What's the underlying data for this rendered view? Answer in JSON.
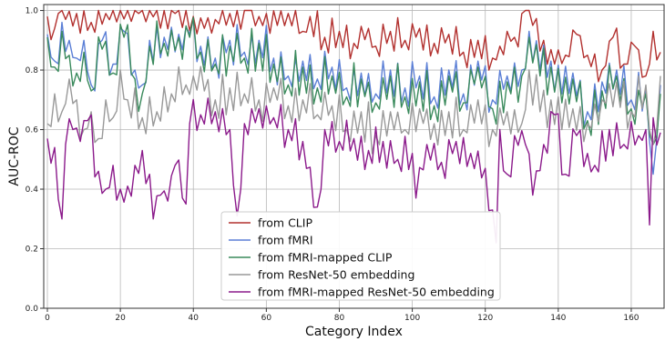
{
  "chart_data": {
    "type": "line",
    "title": "",
    "xlabel": "Category Index",
    "ylabel": "AUC-ROC",
    "xlim": [
      -1,
      169
    ],
    "ylim": [
      0.0,
      1.02
    ],
    "xticks": [
      0,
      20,
      40,
      60,
      80,
      100,
      120,
      140,
      160
    ],
    "yticks": [
      0.0,
      0.2,
      0.4,
      0.6,
      0.8,
      1.0
    ],
    "xtick_labels": [
      "0",
      "20",
      "40",
      "60",
      "80",
      "100",
      "120",
      "140",
      "160"
    ],
    "ytick_labels": [
      "0.0",
      "0.2",
      "0.4",
      "0.6",
      "0.8",
      "1.0"
    ],
    "grid": true,
    "legend_position": "lower-center",
    "series": [
      {
        "name": "from CLIP",
        "color": "#b2302e",
        "key": [
          [
            0,
            0.98
          ],
          [
            2,
            0.94
          ],
          [
            3,
            0.99
          ],
          [
            5,
            0.97
          ],
          [
            8,
            0.99
          ],
          [
            12,
            0.96
          ],
          [
            16,
            0.99
          ],
          [
            20,
            1.0
          ],
          [
            25,
            0.99
          ],
          [
            30,
            1.0
          ],
          [
            35,
            0.99
          ],
          [
            40,
            0.98
          ],
          [
            43,
            0.94
          ],
          [
            46,
            0.97
          ],
          [
            50,
            0.99
          ],
          [
            55,
            1.0
          ],
          [
            58,
            0.98
          ],
          [
            60,
            0.99
          ],
          [
            63,
            0.95
          ],
          [
            66,
            0.99
          ],
          [
            70,
            0.93
          ],
          [
            72,
            0.98
          ],
          [
            76,
            0.91
          ],
          [
            80,
            0.93
          ],
          [
            84,
            0.89
          ],
          [
            88,
            0.94
          ],
          [
            90,
            0.88
          ],
          [
            94,
            0.93
          ],
          [
            98,
            0.9
          ],
          [
            102,
            0.94
          ],
          [
            106,
            0.89
          ],
          [
            110,
            0.92
          ],
          [
            114,
            0.86
          ],
          [
            118,
            0.9
          ],
          [
            122,
            0.84
          ],
          [
            124,
            0.88
          ],
          [
            126,
            0.93
          ],
          [
            128,
            0.91
          ],
          [
            131,
            1.0
          ],
          [
            133,
            0.95
          ],
          [
            136,
            0.9
          ],
          [
            139,
            0.82
          ],
          [
            142,
            0.85
          ],
          [
            145,
            0.92
          ],
          [
            148,
            0.85
          ],
          [
            152,
            0.8
          ],
          [
            155,
            0.91
          ],
          [
            158,
            0.82
          ],
          [
            161,
            0.88
          ],
          [
            164,
            0.78
          ],
          [
            166,
            0.93
          ],
          [
            168,
            0.86
          ]
        ],
        "amp": 0.045
      },
      {
        "name": "from fMRI",
        "color": "#5b7fd6",
        "key": [
          [
            0,
            0.92
          ],
          [
            2,
            0.83
          ],
          [
            4,
            0.96
          ],
          [
            6,
            0.9
          ],
          [
            8,
            0.84
          ],
          [
            10,
            0.9
          ],
          [
            12,
            0.75
          ],
          [
            15,
            0.9
          ],
          [
            18,
            0.82
          ],
          [
            21,
            0.93
          ],
          [
            24,
            0.8
          ],
          [
            26,
            0.75
          ],
          [
            28,
            0.9
          ],
          [
            32,
            0.91
          ],
          [
            36,
            0.92
          ],
          [
            39,
            0.92
          ],
          [
            42,
            0.88
          ],
          [
            46,
            0.84
          ],
          [
            50,
            0.9
          ],
          [
            54,
            0.86
          ],
          [
            58,
            0.9
          ],
          [
            62,
            0.84
          ],
          [
            66,
            0.78
          ],
          [
            70,
            0.83
          ],
          [
            74,
            0.77
          ],
          [
            78,
            0.81
          ],
          [
            82,
            0.74
          ],
          [
            86,
            0.79
          ],
          [
            90,
            0.72
          ],
          [
            94,
            0.8
          ],
          [
            98,
            0.74
          ],
          [
            102,
            0.78
          ],
          [
            106,
            0.71
          ],
          [
            110,
            0.8
          ],
          [
            114,
            0.72
          ],
          [
            118,
            0.83
          ],
          [
            122,
            0.7
          ],
          [
            126,
            0.78
          ],
          [
            130,
            0.8
          ],
          [
            132,
            0.93
          ],
          [
            135,
            0.8
          ],
          [
            138,
            0.83
          ],
          [
            141,
            0.72
          ],
          [
            144,
            0.79
          ],
          [
            148,
            0.66
          ],
          [
            152,
            0.76
          ],
          [
            156,
            0.8
          ],
          [
            160,
            0.7
          ],
          [
            164,
            0.74
          ],
          [
            166,
            0.45
          ],
          [
            168,
            0.75
          ]
        ],
        "amp": 0.06
      },
      {
        "name": "from fMRI-mapped CLIP",
        "color": "#3a8a5c",
        "key": [
          [
            0,
            0.91
          ],
          [
            2,
            0.81
          ],
          [
            4,
            0.93
          ],
          [
            6,
            0.85
          ],
          [
            8,
            0.79
          ],
          [
            10,
            0.86
          ],
          [
            12,
            0.73
          ],
          [
            15,
            0.87
          ],
          [
            18,
            0.79
          ],
          [
            21,
            0.91
          ],
          [
            24,
            0.77
          ],
          [
            26,
            0.72
          ],
          [
            28,
            0.88
          ],
          [
            32,
            0.89
          ],
          [
            36,
            0.91
          ],
          [
            39,
            0.91
          ],
          [
            42,
            0.86
          ],
          [
            46,
            0.82
          ],
          [
            50,
            0.88
          ],
          [
            54,
            0.84
          ],
          [
            58,
            0.89
          ],
          [
            62,
            0.82
          ],
          [
            66,
            0.75
          ],
          [
            70,
            0.81
          ],
          [
            74,
            0.74
          ],
          [
            78,
            0.78
          ],
          [
            82,
            0.71
          ],
          [
            86,
            0.77
          ],
          [
            90,
            0.69
          ],
          [
            94,
            0.78
          ],
          [
            98,
            0.71
          ],
          [
            102,
            0.76
          ],
          [
            106,
            0.68
          ],
          [
            110,
            0.78
          ],
          [
            114,
            0.69
          ],
          [
            118,
            0.81
          ],
          [
            122,
            0.67
          ],
          [
            126,
            0.76
          ],
          [
            130,
            0.78
          ],
          [
            132,
            0.91
          ],
          [
            135,
            0.78
          ],
          [
            138,
            0.81
          ],
          [
            141,
            0.69
          ],
          [
            144,
            0.77
          ],
          [
            148,
            0.63
          ],
          [
            152,
            0.73
          ],
          [
            156,
            0.78
          ],
          [
            160,
            0.67
          ],
          [
            164,
            0.72
          ],
          [
            166,
            0.55
          ],
          [
            168,
            0.72
          ]
        ],
        "amp": 0.065
      },
      {
        "name": "from ResNet-50 embedding",
        "color": "#999999",
        "key": [
          [
            0,
            0.62
          ],
          [
            2,
            0.72
          ],
          [
            4,
            0.66
          ],
          [
            6,
            0.77
          ],
          [
            8,
            0.7
          ],
          [
            10,
            0.6
          ],
          [
            12,
            0.66
          ],
          [
            14,
            0.57
          ],
          [
            16,
            0.7
          ],
          [
            18,
            0.64
          ],
          [
            20,
            0.8
          ],
          [
            22,
            0.7
          ],
          [
            26,
            0.64
          ],
          [
            30,
            0.66
          ],
          [
            34,
            0.72
          ],
          [
            38,
            0.75
          ],
          [
            40,
            0.78
          ],
          [
            43,
            0.73
          ],
          [
            46,
            0.7
          ],
          [
            50,
            0.74
          ],
          [
            54,
            0.72
          ],
          [
            58,
            0.7
          ],
          [
            62,
            0.74
          ],
          [
            66,
            0.68
          ],
          [
            70,
            0.7
          ],
          [
            74,
            0.65
          ],
          [
            78,
            0.68
          ],
          [
            82,
            0.6
          ],
          [
            86,
            0.66
          ],
          [
            90,
            0.58
          ],
          [
            94,
            0.66
          ],
          [
            98,
            0.6
          ],
          [
            102,
            0.67
          ],
          [
            106,
            0.62
          ],
          [
            110,
            0.66
          ],
          [
            114,
            0.6
          ],
          [
            118,
            0.7
          ],
          [
            122,
            0.6
          ],
          [
            126,
            0.66
          ],
          [
            130,
            0.62
          ],
          [
            132,
            0.8
          ],
          [
            135,
            0.66
          ],
          [
            138,
            0.7
          ],
          [
            141,
            0.6
          ],
          [
            144,
            0.67
          ],
          [
            148,
            0.62
          ],
          [
            152,
            0.7
          ],
          [
            156,
            0.76
          ],
          [
            160,
            0.66
          ],
          [
            164,
            0.75
          ],
          [
            166,
            0.55
          ],
          [
            168,
            0.78
          ]
        ],
        "amp": 0.06
      },
      {
        "name": "from fMRI-mapped ResNet-50 embedding",
        "color": "#8b1a8b",
        "key": [
          [
            0,
            0.57
          ],
          [
            2,
            0.54
          ],
          [
            4,
            0.3
          ],
          [
            5,
            0.55
          ],
          [
            7,
            0.6
          ],
          [
            9,
            0.56
          ],
          [
            11,
            0.63
          ],
          [
            14,
            0.46
          ],
          [
            16,
            0.4
          ],
          [
            18,
            0.48
          ],
          [
            20,
            0.4
          ],
          [
            22,
            0.41
          ],
          [
            24,
            0.48
          ],
          [
            26,
            0.53
          ],
          [
            28,
            0.45
          ],
          [
            29,
            0.3
          ],
          [
            31,
            0.38
          ],
          [
            33,
            0.36
          ],
          [
            35,
            0.48
          ],
          [
            37,
            0.37
          ],
          [
            38,
            0.35
          ],
          [
            39,
            0.62
          ],
          [
            42,
            0.65
          ],
          [
            46,
            0.66
          ],
          [
            50,
            0.6
          ],
          [
            52,
            0.31
          ],
          [
            54,
            0.62
          ],
          [
            58,
            0.67
          ],
          [
            62,
            0.64
          ],
          [
            66,
            0.6
          ],
          [
            70,
            0.56
          ],
          [
            74,
            0.34
          ],
          [
            76,
            0.6
          ],
          [
            80,
            0.56
          ],
          [
            84,
            0.57
          ],
          [
            88,
            0.53
          ],
          [
            92,
            0.56
          ],
          [
            96,
            0.5
          ],
          [
            100,
            0.52
          ],
          [
            101,
            0.37
          ],
          [
            104,
            0.55
          ],
          [
            108,
            0.49
          ],
          [
            112,
            0.56
          ],
          [
            116,
            0.52
          ],
          [
            120,
            0.47
          ],
          [
            122,
            0.33
          ],
          [
            123,
            0.22
          ],
          [
            124,
            0.6
          ],
          [
            126,
            0.45
          ],
          [
            128,
            0.58
          ],
          [
            131,
            0.55
          ],
          [
            133,
            0.38
          ],
          [
            136,
            0.55
          ],
          [
            139,
            0.65
          ],
          [
            142,
            0.45
          ],
          [
            145,
            0.58
          ],
          [
            148,
            0.52
          ],
          [
            150,
            0.48
          ],
          [
            154,
            0.6
          ],
          [
            158,
            0.55
          ],
          [
            162,
            0.58
          ],
          [
            164,
            0.6
          ],
          [
            165,
            0.28
          ],
          [
            166,
            0.64
          ],
          [
            168,
            0.59
          ]
        ],
        "amp": 0.055
      }
    ]
  }
}
